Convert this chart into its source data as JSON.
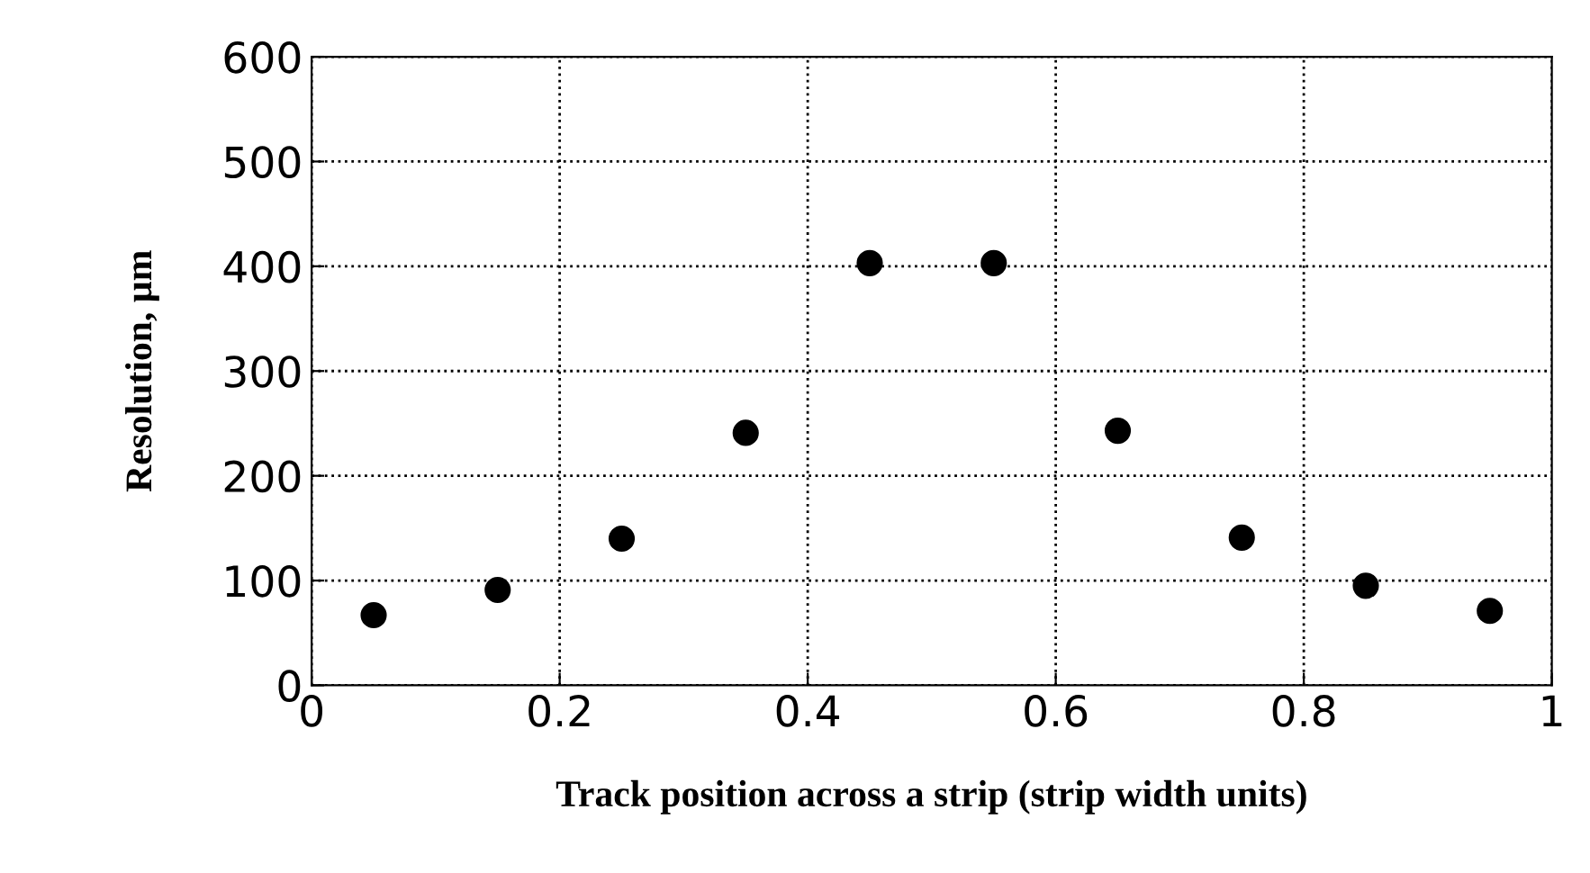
{
  "chart_data": {
    "type": "scatter",
    "xlabel": "Track position across a strip (strip width units)",
    "ylabel": "Resolution, µm",
    "x": [
      0.05,
      0.15,
      0.25,
      0.35,
      0.45,
      0.55,
      0.65,
      0.75,
      0.85,
      0.95
    ],
    "series": [
      {
        "color": "#000000",
        "values": [
          67,
          91,
          140,
          241,
          403,
          403,
          243,
          141,
          95,
          71
        ]
      }
    ],
    "xlim": [
      0,
      1
    ],
    "xticks": [
      0,
      0.2,
      0.4,
      0.6,
      0.8,
      1
    ],
    "ylim": [
      0,
      600
    ],
    "yticks": [
      0,
      100,
      200,
      300,
      400,
      500,
      600
    ],
    "grid": true,
    "marker": "circle"
  }
}
